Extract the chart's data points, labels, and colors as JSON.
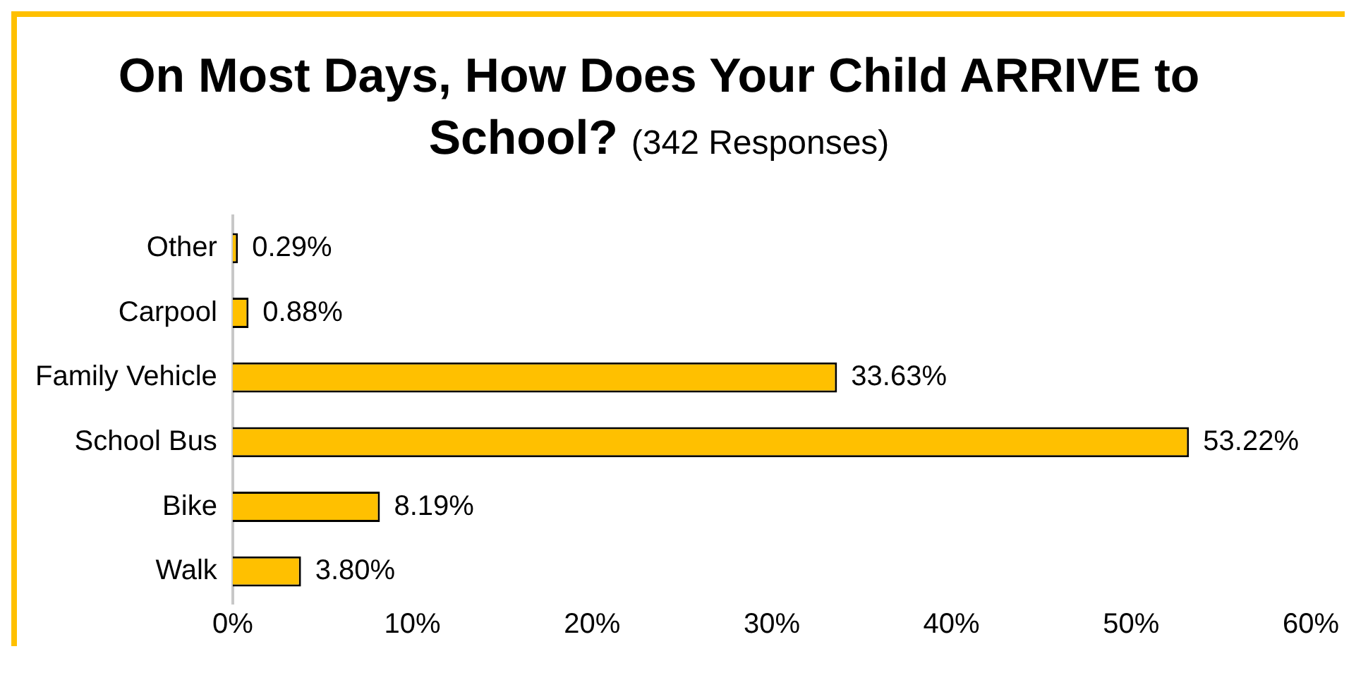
{
  "chart_data": {
    "type": "bar",
    "orientation": "horizontal",
    "title": "On Most Days, How Does Your Child ARRIVE to School?",
    "subtitle": "(342 Responses)",
    "categories": [
      "Other",
      "Carpool",
      "Family Vehicle",
      "School Bus",
      "Bike",
      "Walk"
    ],
    "values": [
      0.29,
      0.88,
      33.63,
      53.22,
      8.19,
      3.8
    ],
    "value_labels": [
      "0.29%",
      "0.88%",
      "33.63%",
      "53.22%",
      "8.19%",
      "3.80%"
    ],
    "color": "#ffc000",
    "xlim": [
      0,
      60
    ],
    "xticks": [
      {
        "value": 0,
        "label": "0%"
      },
      {
        "value": 10,
        "label": "10%"
      },
      {
        "value": 20,
        "label": "20%"
      },
      {
        "value": 30,
        "label": "30%"
      },
      {
        "value": 40,
        "label": "40%"
      },
      {
        "value": 50,
        "label": "50%"
      },
      {
        "value": 60,
        "label": "60%"
      }
    ],
    "grid": false,
    "legend": false
  }
}
